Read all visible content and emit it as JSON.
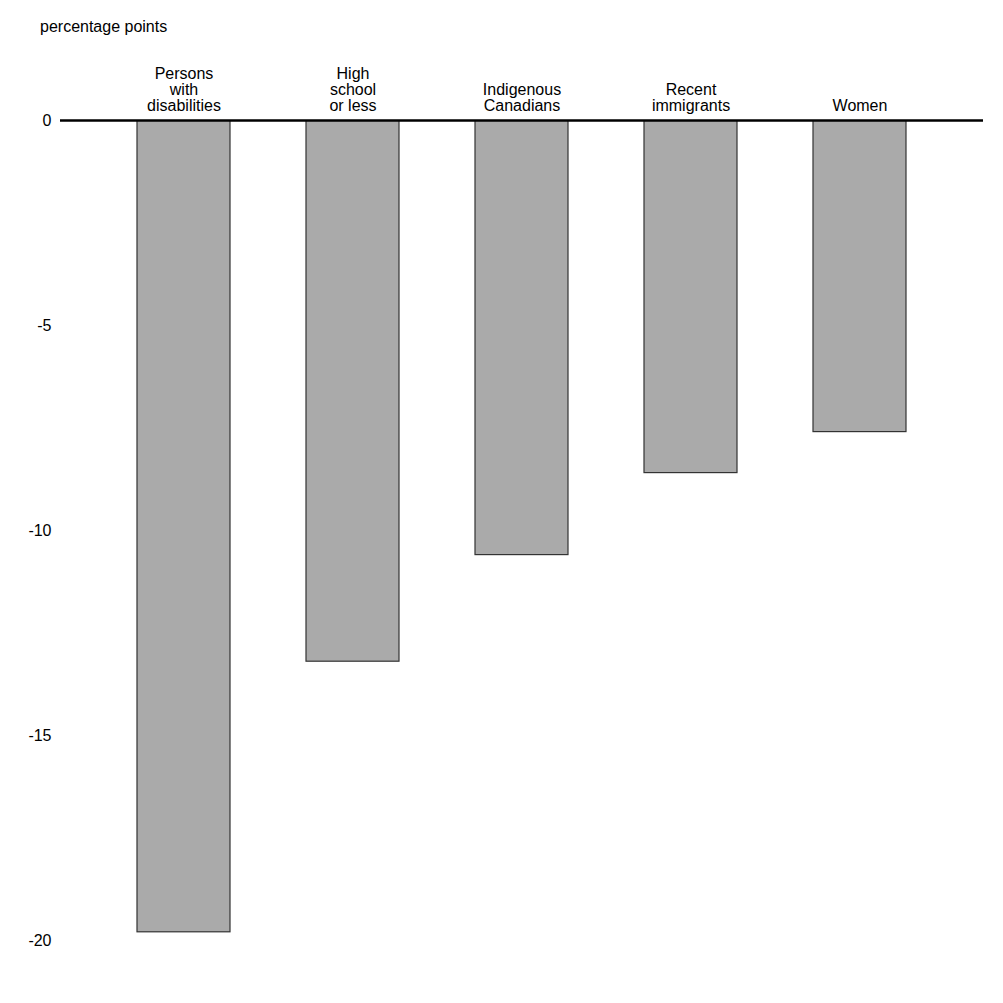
{
  "chart_data": {
    "type": "bar",
    "categories": [
      "Persons\nwith\ndisabilities",
      "High\nschool\nor less",
      "Indigenous\nCanadians",
      "Recent\nimmigrants",
      "Women"
    ],
    "values": [
      -19.8,
      -13.2,
      -10.6,
      -8.6,
      -7.6
    ],
    "color": "#AAAAAA",
    "ylabel": "percentage points",
    "ylim": [
      -20,
      0
    ],
    "yticks": [
      0,
      -5,
      -10,
      -15,
      -20
    ],
    "grid": false
  }
}
